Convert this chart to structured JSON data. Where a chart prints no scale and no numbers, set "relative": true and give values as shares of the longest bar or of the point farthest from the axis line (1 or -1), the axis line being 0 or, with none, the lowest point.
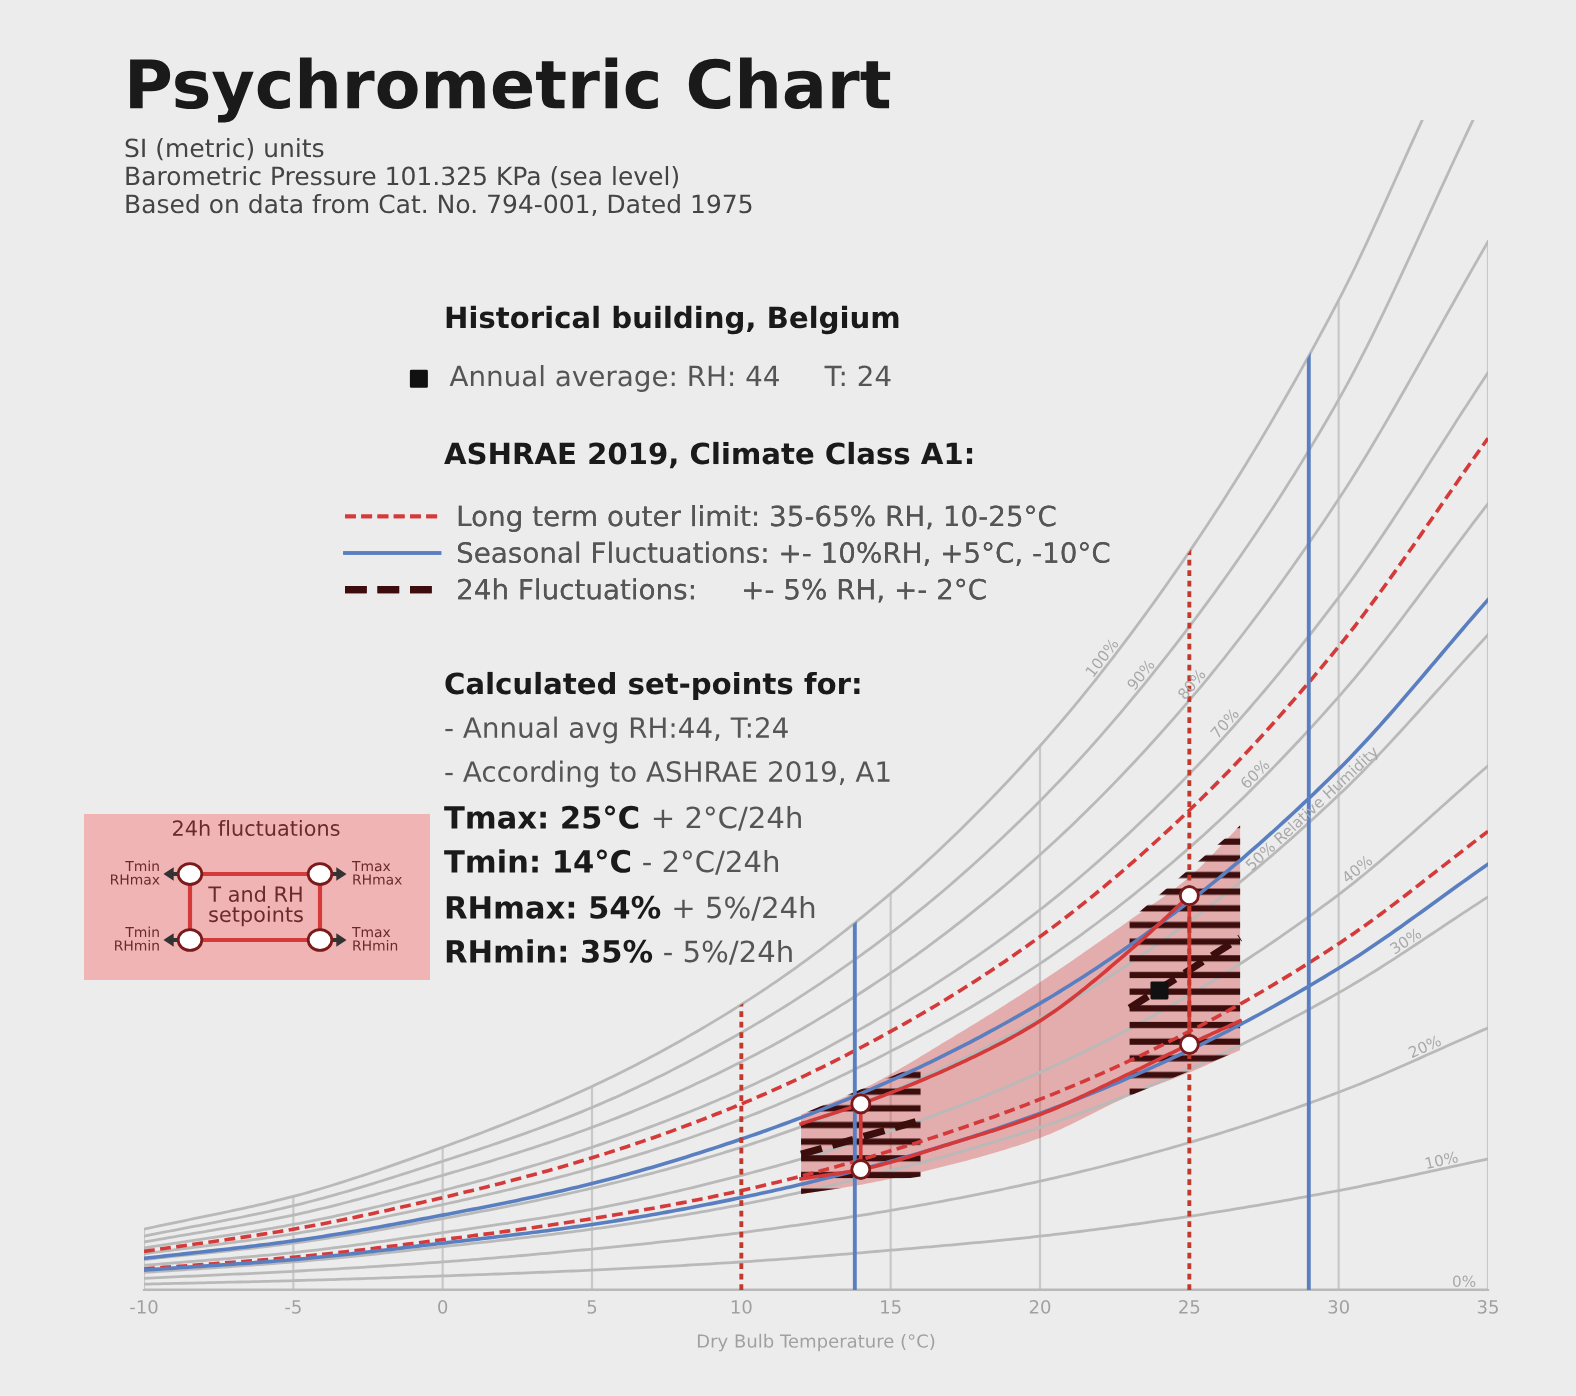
{
  "chart_data": {
    "type": "line",
    "title": "Psychrometric Chart",
    "subtitle": "SI (metric) units\nBarometric Pressure 101.325 KPa (sea level)\nBased on data from Cat. No. 794-001, Dated 1975",
    "xlabel": "Dry Bulb Temperature (°C)",
    "xlim": [
      -10,
      35
    ],
    "xticks": [
      -10,
      -5,
      0,
      5,
      10,
      15,
      20,
      25,
      30,
      35
    ],
    "relative": true,
    "grid": "x",
    "legend": "top left",
    "tick_labels": "x",
    "annotations": [
      "Historical building, Belgium",
      "ASHRAE 2019, Climate Class A1:",
      "Calculated set-points for:",
      "- Annual avg RH:44, T:24",
      "- According to ASHRAE 2019, A1",
      "Tmax: 25°C",
      "+ 2°C/24h",
      "Tmin: 14°C",
      "- 2°C/24h",
      "RHmax: 54%",
      "+ 5%/24h",
      "RHmin: 35%",
      "- 5%/24h",
      "24h fluctuations",
      "T and RH\nsetpoints",
      "Tmin\nRHmax",
      "Tmax\nRHmax",
      "Tmin\nRHmin",
      "Tmax\nRHmin"
    ],
    "series": [
      {
        "name": "100%",
        "color": "#b9b9b9",
        "x": [
          -10,
          -5,
          0,
          5,
          10,
          15,
          20,
          25,
          30,
          32.8
        ],
        "values": [
          0.052,
          0.08,
          0.122,
          0.174,
          0.244,
          0.339,
          0.465,
          0.631,
          0.846,
          1
        ]
      },
      {
        "name": "90%",
        "color": "#b9b9b9",
        "x": [
          -10,
          -5,
          0,
          5,
          10,
          15,
          20,
          25,
          30,
          34.5
        ],
        "values": [
          0.046,
          0.072,
          0.11,
          0.156,
          0.22,
          0.305,
          0.418,
          0.567,
          0.761,
          1
        ]
      },
      {
        "name": "80%",
        "color": "#b9b9b9",
        "x": [
          -10,
          -5,
          0,
          5,
          10,
          15,
          20,
          25,
          30,
          35
        ],
        "values": [
          0.041,
          0.064,
          0.098,
          0.139,
          0.195,
          0.271,
          0.372,
          0.504,
          0.676,
          0.896
        ]
      },
      {
        "name": "70%",
        "color": "#b9b9b9",
        "x": [
          -10,
          -5,
          0,
          5,
          10,
          15,
          20,
          25,
          30,
          35
        ],
        "values": [
          0.036,
          0.056,
          0.085,
          0.122,
          0.171,
          0.238,
          0.325,
          0.441,
          0.592,
          0.784
        ]
      },
      {
        "name": "60%",
        "color": "#b9b9b9",
        "x": [
          -10,
          -5,
          0,
          5,
          10,
          15,
          20,
          25,
          30,
          35
        ],
        "values": [
          0.031,
          0.048,
          0.073,
          0.104,
          0.146,
          0.204,
          0.279,
          0.378,
          0.507,
          0.672
        ]
      },
      {
        "name": "50% Relative Humidity",
        "color": "#b9b9b9",
        "x": [
          -10,
          -5,
          0,
          5,
          10,
          15,
          20,
          25,
          30,
          35
        ],
        "values": [
          0.026,
          0.04,
          0.061,
          0.087,
          0.122,
          0.17,
          0.232,
          0.315,
          0.423,
          0.56
        ]
      },
      {
        "name": "40%",
        "color": "#b9b9b9",
        "x": [
          -10,
          -5,
          0,
          5,
          10,
          15,
          20,
          25,
          30,
          35
        ],
        "values": [
          0.021,
          0.032,
          0.049,
          0.069,
          0.098,
          0.136,
          0.186,
          0.252,
          0.338,
          0.448
        ]
      },
      {
        "name": "30%",
        "color": "#b9b9b9",
        "x": [
          -10,
          -5,
          0,
          5,
          10,
          15,
          20,
          25,
          30,
          35
        ],
        "values": [
          0.015,
          0.024,
          0.037,
          0.052,
          0.073,
          0.102,
          0.139,
          0.189,
          0.254,
          0.336
        ]
      },
      {
        "name": "20%",
        "color": "#b9b9b9",
        "x": [
          -10,
          -5,
          0,
          5,
          10,
          15,
          20,
          25,
          30,
          35
        ],
        "values": [
          0.01,
          0.016,
          0.024,
          0.035,
          0.049,
          0.068,
          0.093,
          0.126,
          0.169,
          0.224
        ]
      },
      {
        "name": "10%",
        "color": "#b9b9b9",
        "x": [
          -10,
          -5,
          0,
          5,
          10,
          15,
          20,
          25,
          30,
          35
        ],
        "values": [
          0.005,
          0.008,
          0.012,
          0.017,
          0.024,
          0.034,
          0.046,
          0.063,
          0.085,
          0.112
        ]
      },
      {
        "name": "0%",
        "color": "#b9b9b9",
        "x": [
          -10,
          35
        ],
        "values": [
          0,
          0
        ]
      },
      {
        "name": "Long term outer limit: 35-65% RH, 10-25°C",
        "type": "line",
        "color": "#d43a3a",
        "line_style": "dashed",
        "x": [
          -10,
          -5,
          0,
          5,
          10,
          15,
          20,
          25,
          30,
          35
        ],
        "values": [
          0.033,
          0.052,
          0.079,
          0.113,
          0.159,
          0.221,
          0.302,
          0.41,
          0.55,
          0.728
        ]
      },
      {
        "type": "line",
        "color": "#d43a3a",
        "line_style": "dashed",
        "x": [
          -10,
          -5,
          0,
          5,
          10,
          15,
          20,
          25,
          30,
          35
        ],
        "values": [
          0.018,
          0.028,
          0.043,
          0.061,
          0.085,
          0.119,
          0.163,
          0.221,
          0.296,
          0.392
        ]
      },
      {
        "name": "Seasonal Fluctuations: +- 10%RH, +5°C, -10°C",
        "type": "line",
        "color": "#5a7fc0",
        "x": [
          -10,
          -5,
          0,
          5,
          10,
          15,
          20,
          25,
          30,
          35
        ],
        "values": [
          0.027,
          0.042,
          0.064,
          0.091,
          0.129,
          0.179,
          0.245,
          0.332,
          0.445,
          0.59
        ]
      },
      {
        "type": "line",
        "color": "#5a7fc0",
        "x": [
          -10,
          -5,
          0,
          5,
          10,
          15,
          20,
          25,
          30,
          35
        ],
        "values": [
          0.017,
          0.026,
          0.04,
          0.056,
          0.079,
          0.11,
          0.151,
          0.205,
          0.275,
          0.364
        ]
      },
      {
        "name": "24h Fluctuations:     +- 5% RH, +- 2°C",
        "type": "line",
        "color": "#3b0d0d",
        "line_style": "dashed",
        "x": [
          12,
          16
        ],
        "values": [
          0.116,
          0.145
        ],
        "lower": [
          0.082,
          0.097
        ],
        "upper": [
          0.15,
          0.193
        ]
      },
      {
        "type": "line",
        "color": "#3b0d0d",
        "line_style": "dashed",
        "x": [
          23,
          26.7
        ],
        "values": [
          0.241,
          0.301
        ],
        "lower": [
          0.166,
          0.205
        ],
        "upper": [
          0.316,
          0.397
        ]
      },
      {
        "type": "line",
        "color": "#d43a3a",
        "x": [
          12,
          14,
          17,
          20,
          23,
          25
        ],
        "values": [
          0.142,
          0.159,
          0.19,
          0.23,
          0.29,
          0.337
        ]
      },
      {
        "type": "line",
        "color": "#d43a3a",
        "x": [
          12,
          14,
          17,
          20,
          23,
          25,
          26.7
        ],
        "values": [
          0.095,
          0.103,
          0.125,
          0.15,
          0.185,
          0.21,
          0.23
        ],
        "lower": [
          0.082,
          0.09,
          0.107,
          0.13,
          0.166,
          0.186,
          0.205
        ],
        "upper": [
          0.15,
          0.171,
          0.215,
          0.263,
          0.316,
          0.353,
          0.397
        ]
      },
      {
        "type": "line",
        "color": "#d43a3a",
        "x": [
          14,
          14
        ],
        "values": [
          0.103,
          0.159
        ]
      },
      {
        "type": "line",
        "color": "#d43a3a",
        "x": [
          25,
          25
        ],
        "values": [
          0.21,
          0.337
        ]
      },
      {
        "type": "scatter",
        "color": "#ffffff",
        "marker": "circle",
        "x": [
          14,
          14,
          25,
          25
        ],
        "values": [
          0.159,
          0.103,
          0.337,
          0.21
        ]
      },
      {
        "name": "Annual average: RH: 44     T: 24",
        "type": "scatter",
        "color": "#111111",
        "marker": "square",
        "x": [
          24
        ],
        "values": [
          0.256
        ]
      }
    ],
    "ref_lines": [
      {
        "axis": "x",
        "value": 10,
        "color": "#c0392b",
        "line_style": "dotted"
      },
      {
        "axis": "x",
        "value": 25,
        "color": "#c0392b",
        "line_style": "dotted"
      },
      {
        "axis": "x",
        "value": 13.8,
        "color": "#5a7fc0",
        "line_style": "solid"
      },
      {
        "axis": "x",
        "value": 29,
        "color": "#5a7fc0",
        "line_style": "solid"
      }
    ]
  }
}
